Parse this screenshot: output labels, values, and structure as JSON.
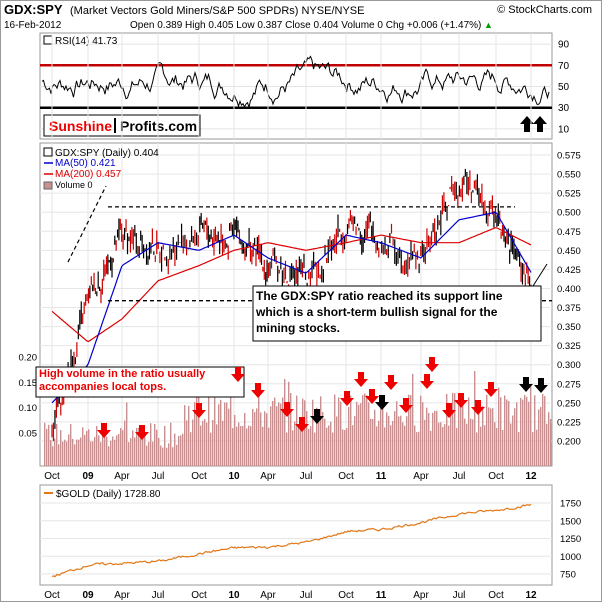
{
  "header": {
    "symbol": "GDX:SPY",
    "description": "(Market Vectors Gold Miners/S&P 500 SPDRs) NYSE/NYSE",
    "watermark": "© StockCharts.com",
    "date": "16-Feb-2012",
    "stats": "Open 0.389  High 0.405  Low 0.387  Close 0.404  Volume 0  Chg +0.006 (+1.47%)",
    "stats_up_arrow": "▲"
  },
  "rsi_panel": {
    "label": "RSI(14) 41.73",
    "yticks": [
      90,
      70,
      50,
      30,
      10
    ],
    "overbought": 70,
    "oversold": 30,
    "value": 41.73,
    "logo": {
      "part1": "Sunshine",
      "part2": "Profits.com"
    }
  },
  "main_panel": {
    "legend": {
      "price": "GDX:SPY (Daily) 0.404",
      "ma50": "MA(50) 0.421",
      "ma200": "MA(200) 0.457",
      "volume": "Volume 0"
    },
    "yticks": [
      "0.575",
      "0.550",
      "0.525",
      "0.500",
      "0.475",
      "0.450",
      "0.425",
      "0.400",
      "0.375",
      "0.350",
      "0.325",
      "0.300",
      "0.275",
      "0.250",
      "0.225",
      "0.200"
    ],
    "volume_yticks": [
      "0.20",
      "0.15",
      "0.10",
      "0.05"
    ],
    "annotation_support": "The GDX:SPY ratio reached its support line which is a short-term bullish signal for the mining stocks.",
    "annotation_volume": "High volume in the ratio usually accompanies local tops.",
    "resistance_level": 0.507,
    "support_level": 0.384
  },
  "gold_panel": {
    "label": "$GOLD (Daily) 1728.80",
    "yticks": [
      "1750",
      "1500",
      "1250",
      "1000",
      "750"
    ]
  },
  "x_axis": {
    "labels": [
      "Oct",
      "09",
      "Apr",
      "Jul",
      "Oct",
      "10",
      "Apr",
      "Jul",
      "Oct",
      "11",
      "Apr",
      "Jul",
      "Oct",
      "12"
    ]
  },
  "colors": {
    "rsi_band": "#c00000",
    "ma50": "#0000cc",
    "ma200": "#dd0000",
    "volume_bar": "#c89090",
    "gold_line": "#e07818",
    "arrow_red": "#ee0000",
    "arrow_black": "#000000",
    "logo_red": "#ee0000"
  },
  "chart_data": [
    {
      "type": "line",
      "title": "RSI(14) 41.73",
      "series": [
        {
          "name": "RSI(14)",
          "last": 41.73
        }
      ],
      "ylim": [
        0,
        100
      ]
    },
    {
      "type": "line",
      "title": "GDX:SPY (Daily) 0.404",
      "x": [
        "Oct",
        "09",
        "Apr",
        "Jul",
        "Oct",
        "10",
        "Apr",
        "Jul",
        "Oct",
        "11",
        "Apr",
        "Jul",
        "Oct",
        "12"
      ],
      "series": [
        {
          "name": "GDX:SPY (Daily)",
          "values": [
            0.22,
            0.39,
            0.47,
            0.45,
            0.47,
            0.47,
            0.43,
            0.41,
            0.49,
            0.46,
            0.44,
            0.55,
            0.49,
            0.4
          ]
        },
        {
          "name": "MA(50)",
          "values": [
            0.25,
            0.3,
            0.43,
            0.46,
            0.45,
            0.47,
            0.44,
            0.42,
            0.47,
            0.46,
            0.44,
            0.49,
            0.5,
            0.421
          ]
        },
        {
          "name": "MA(200)",
          "values": [
            0.37,
            0.33,
            0.36,
            0.41,
            0.43,
            0.45,
            0.46,
            0.45,
            0.46,
            0.47,
            0.46,
            0.46,
            0.48,
            0.457
          ]
        }
      ],
      "ylim": [
        0.2,
        0.58
      ]
    },
    {
      "type": "line",
      "title": "$GOLD (Daily) 1728.80",
      "x": [
        "Oct",
        "09",
        "Apr",
        "Jul",
        "Oct",
        "10",
        "Apr",
        "Jul",
        "Oct",
        "11",
        "Apr",
        "Jul",
        "Oct",
        "12"
      ],
      "series": [
        {
          "name": "$GOLD (Daily)",
          "values": [
            720,
            880,
            900,
            930,
            1040,
            1120,
            1130,
            1200,
            1350,
            1380,
            1480,
            1600,
            1650,
            1729
          ]
        }
      ],
      "ylim": [
        650,
        1900
      ]
    }
  ]
}
